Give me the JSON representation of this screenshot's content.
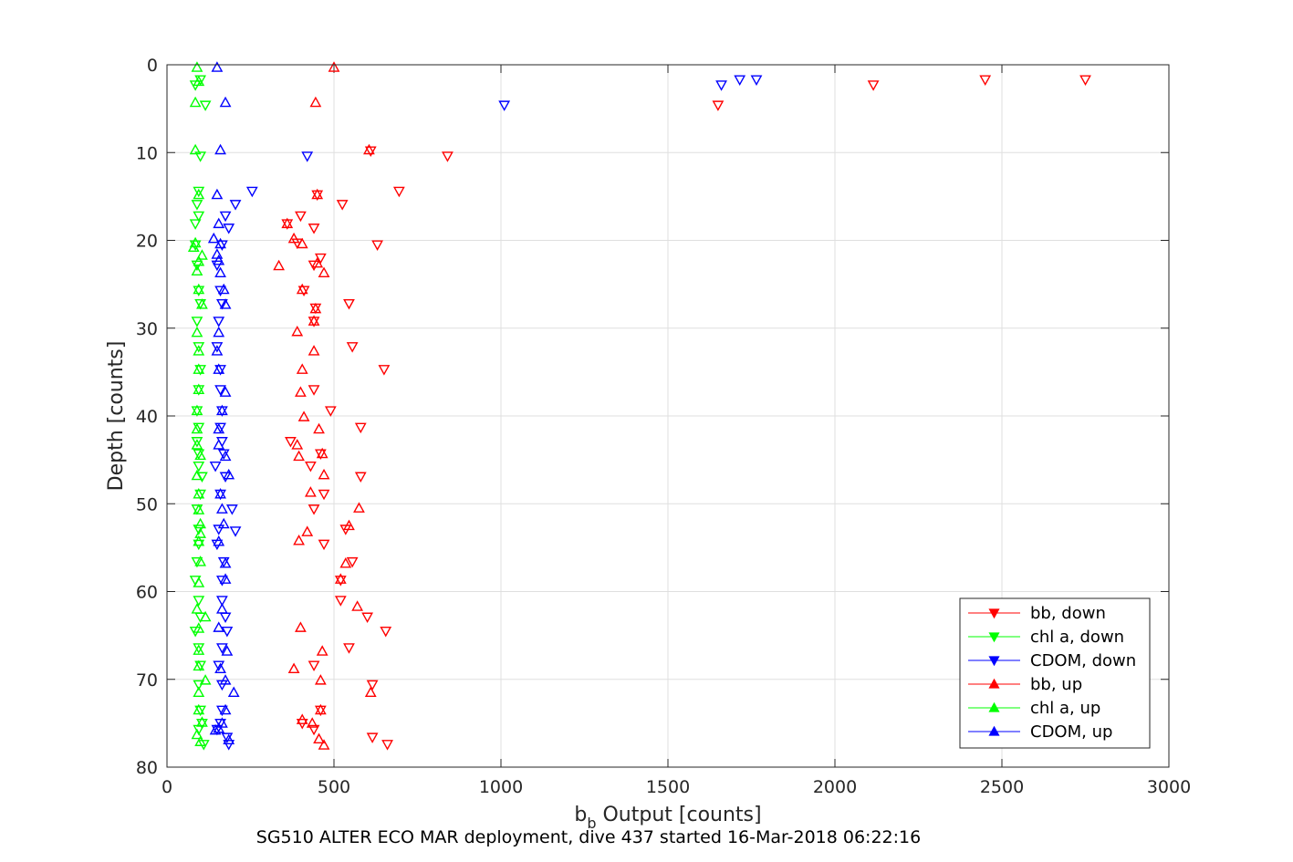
{
  "chart_data": {
    "type": "scatter",
    "title": "",
    "xlabel_main": "b",
    "xlabel_sub": "b",
    "xlabel_rest": " Output [counts]",
    "ylabel": "Depth [counts]",
    "caption": "SG510 ALTER ECO MAR deployment, dive 437 started 16-Mar-2018 06:22:16",
    "xlim": [
      0,
      3000
    ],
    "ylim": [
      0,
      80
    ],
    "y_reversed": true,
    "grid": true,
    "legend_position": "bottom-right",
    "x_ticks": [
      0,
      500,
      1000,
      1500,
      2000,
      2500,
      3000
    ],
    "y_ticks": [
      0,
      10,
      20,
      30,
      40,
      50,
      60,
      70,
      80
    ],
    "series": [
      {
        "name": "bb, down",
        "color": "#ff0000",
        "marker": "triangle-down",
        "points": [
          [
            1650,
            4.6
          ],
          [
            2115,
            2.3
          ],
          [
            2450,
            1.7
          ],
          [
            2750,
            1.7
          ],
          [
            610,
            9.8
          ],
          [
            840,
            10.4
          ],
          [
            695,
            14.4
          ],
          [
            525,
            15.9
          ],
          [
            450,
            14.8
          ],
          [
            440,
            18.6
          ],
          [
            630,
            20.5
          ],
          [
            390,
            20.3
          ],
          [
            360,
            18.1
          ],
          [
            400,
            17.2
          ],
          [
            460,
            22.0
          ],
          [
            440,
            22.8
          ],
          [
            410,
            25.7
          ],
          [
            545,
            27.2
          ],
          [
            445,
            27.7
          ],
          [
            440,
            29.2
          ],
          [
            555,
            32.1
          ],
          [
            650,
            34.7
          ],
          [
            440,
            37.0
          ],
          [
            490,
            39.4
          ],
          [
            580,
            41.3
          ],
          [
            370,
            42.9
          ],
          [
            460,
            44.3
          ],
          [
            430,
            45.7
          ],
          [
            580,
            46.9
          ],
          [
            470,
            48.9
          ],
          [
            440,
            50.6
          ],
          [
            535,
            52.9
          ],
          [
            470,
            54.6
          ],
          [
            555,
            56.6
          ],
          [
            520,
            58.7
          ],
          [
            520,
            61.0
          ],
          [
            600,
            62.9
          ],
          [
            655,
            64.5
          ],
          [
            545,
            66.4
          ],
          [
            440,
            68.4
          ],
          [
            615,
            70.6
          ],
          [
            460,
            73.5
          ],
          [
            440,
            75.7
          ],
          [
            405,
            75.0
          ],
          [
            615,
            76.6
          ],
          [
            660,
            77.4
          ]
        ]
      },
      {
        "name": "chl a, down",
        "color": "#00ff00",
        "marker": "triangle-down",
        "points": [
          [
            85,
            2.3
          ],
          [
            100,
            1.7
          ],
          [
            115,
            4.6
          ],
          [
            100,
            10.4
          ],
          [
            95,
            14.4
          ],
          [
            90,
            15.9
          ],
          [
            95,
            17.2
          ],
          [
            85,
            18.1
          ],
          [
            85,
            20.5
          ],
          [
            90,
            22.8
          ],
          [
            95,
            25.7
          ],
          [
            100,
            27.2
          ],
          [
            90,
            29.2
          ],
          [
            95,
            32.1
          ],
          [
            100,
            34.7
          ],
          [
            95,
            37.0
          ],
          [
            90,
            39.4
          ],
          [
            95,
            41.3
          ],
          [
            90,
            42.9
          ],
          [
            95,
            44.3
          ],
          [
            95,
            45.7
          ],
          [
            105,
            46.9
          ],
          [
            100,
            48.9
          ],
          [
            90,
            50.6
          ],
          [
            95,
            52.9
          ],
          [
            95,
            54.6
          ],
          [
            90,
            56.6
          ],
          [
            85,
            58.7
          ],
          [
            95,
            61.0
          ],
          [
            100,
            62.9
          ],
          [
            85,
            64.5
          ],
          [
            95,
            66.4
          ],
          [
            100,
            68.4
          ],
          [
            95,
            70.6
          ],
          [
            100,
            73.5
          ],
          [
            95,
            75.7
          ],
          [
            105,
            75.0
          ],
          [
            110,
            77.4
          ]
        ]
      },
      {
        "name": "CDOM, down",
        "color": "#0000ff",
        "marker": "triangle-down",
        "points": [
          [
            1010,
            4.6
          ],
          [
            1660,
            2.3
          ],
          [
            1715,
            1.7
          ],
          [
            1765,
            1.7
          ],
          [
            420,
            10.4
          ],
          [
            255,
            14.4
          ],
          [
            205,
            15.9
          ],
          [
            175,
            17.2
          ],
          [
            185,
            18.6
          ],
          [
            165,
            20.5
          ],
          [
            150,
            22.8
          ],
          [
            160,
            25.7
          ],
          [
            165,
            27.2
          ],
          [
            155,
            29.2
          ],
          [
            150,
            32.1
          ],
          [
            160,
            34.7
          ],
          [
            160,
            37.0
          ],
          [
            165,
            39.4
          ],
          [
            160,
            41.3
          ],
          [
            165,
            42.9
          ],
          [
            170,
            44.3
          ],
          [
            145,
            45.7
          ],
          [
            175,
            46.9
          ],
          [
            160,
            48.9
          ],
          [
            195,
            50.6
          ],
          [
            155,
            52.9
          ],
          [
            205,
            53.1
          ],
          [
            150,
            54.6
          ],
          [
            170,
            56.6
          ],
          [
            165,
            58.7
          ],
          [
            165,
            61.0
          ],
          [
            175,
            62.9
          ],
          [
            180,
            64.5
          ],
          [
            165,
            66.4
          ],
          [
            155,
            68.4
          ],
          [
            165,
            70.6
          ],
          [
            165,
            73.5
          ],
          [
            150,
            75.7
          ],
          [
            160,
            75.0
          ],
          [
            180,
            76.6
          ],
          [
            185,
            77.4
          ]
        ]
      },
      {
        "name": "bb, up",
        "color": "#ff0000",
        "marker": "triangle-up",
        "points": [
          [
            500,
            0.3
          ],
          [
            445,
            4.3
          ],
          [
            605,
            9.7
          ],
          [
            450,
            14.8
          ],
          [
            360,
            18.1
          ],
          [
            380,
            19.8
          ],
          [
            405,
            20.4
          ],
          [
            335,
            22.9
          ],
          [
            450,
            22.6
          ],
          [
            470,
            23.7
          ],
          [
            405,
            25.6
          ],
          [
            445,
            27.8
          ],
          [
            440,
            29.2
          ],
          [
            390,
            30.4
          ],
          [
            440,
            32.6
          ],
          [
            405,
            34.7
          ],
          [
            400,
            37.3
          ],
          [
            410,
            40.1
          ],
          [
            455,
            41.5
          ],
          [
            390,
            43.3
          ],
          [
            395,
            44.6
          ],
          [
            465,
            44.3
          ],
          [
            470,
            46.7
          ],
          [
            430,
            48.7
          ],
          [
            575,
            50.5
          ],
          [
            545,
            52.5
          ],
          [
            420,
            53.2
          ],
          [
            395,
            54.2
          ],
          [
            535,
            56.8
          ],
          [
            520,
            58.6
          ],
          [
            570,
            61.7
          ],
          [
            400,
            64.1
          ],
          [
            465,
            66.8
          ],
          [
            380,
            68.8
          ],
          [
            460,
            70.1
          ],
          [
            610,
            71.5
          ],
          [
            460,
            73.5
          ],
          [
            405,
            74.6
          ],
          [
            435,
            75.0
          ],
          [
            455,
            76.8
          ],
          [
            470,
            77.5
          ]
        ]
      },
      {
        "name": "chl a, up",
        "color": "#00ff00",
        "marker": "triangle-up",
        "points": [
          [
            90,
            0.3
          ],
          [
            95,
            1.9
          ],
          [
            85,
            4.3
          ],
          [
            85,
            9.7
          ],
          [
            95,
            14.8
          ],
          [
            85,
            20.3
          ],
          [
            80,
            20.8
          ],
          [
            105,
            21.7
          ],
          [
            95,
            22.4
          ],
          [
            90,
            23.5
          ],
          [
            95,
            25.6
          ],
          [
            105,
            27.3
          ],
          [
            90,
            30.5
          ],
          [
            95,
            32.6
          ],
          [
            95,
            34.7
          ],
          [
            95,
            37.0
          ],
          [
            90,
            39.4
          ],
          [
            90,
            41.5
          ],
          [
            90,
            43.3
          ],
          [
            100,
            44.5
          ],
          [
            90,
            46.8
          ],
          [
            95,
            48.9
          ],
          [
            95,
            50.7
          ],
          [
            100,
            52.3
          ],
          [
            100,
            53.4
          ],
          [
            95,
            54.3
          ],
          [
            100,
            56.6
          ],
          [
            95,
            59.0
          ],
          [
            90,
            62.0
          ],
          [
            115,
            62.9
          ],
          [
            95,
            64.2
          ],
          [
            95,
            66.7
          ],
          [
            95,
            68.5
          ],
          [
            115,
            70.1
          ],
          [
            95,
            71.5
          ],
          [
            95,
            73.5
          ],
          [
            105,
            74.9
          ],
          [
            90,
            76.3
          ],
          [
            100,
            77.1
          ]
        ]
      },
      {
        "name": "CDOM, up",
        "color": "#0000ff",
        "marker": "triangle-up",
        "points": [
          [
            150,
            0.3
          ],
          [
            175,
            4.3
          ],
          [
            160,
            9.7
          ],
          [
            150,
            14.8
          ],
          [
            155,
            18.1
          ],
          [
            140,
            19.8
          ],
          [
            160,
            20.4
          ],
          [
            150,
            21.6
          ],
          [
            155,
            22.3
          ],
          [
            160,
            23.7
          ],
          [
            170,
            25.6
          ],
          [
            175,
            27.3
          ],
          [
            155,
            30.5
          ],
          [
            150,
            32.6
          ],
          [
            155,
            34.7
          ],
          [
            175,
            37.3
          ],
          [
            165,
            39.4
          ],
          [
            155,
            41.5
          ],
          [
            155,
            43.3
          ],
          [
            175,
            44.6
          ],
          [
            185,
            46.7
          ],
          [
            160,
            48.9
          ],
          [
            165,
            50.6
          ],
          [
            170,
            52.3
          ],
          [
            155,
            54.3
          ],
          [
            175,
            56.8
          ],
          [
            175,
            58.6
          ],
          [
            165,
            62.0
          ],
          [
            155,
            64.1
          ],
          [
            180,
            66.8
          ],
          [
            160,
            68.8
          ],
          [
            175,
            70.1
          ],
          [
            200,
            71.5
          ],
          [
            175,
            73.5
          ],
          [
            165,
            75.0
          ],
          [
            145,
            75.8
          ],
          [
            155,
            75.6
          ],
          [
            185,
            76.9
          ]
        ]
      }
    ]
  }
}
